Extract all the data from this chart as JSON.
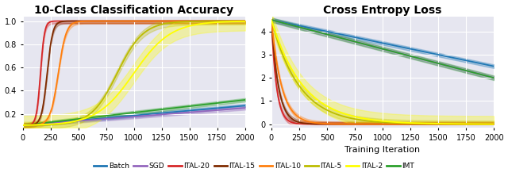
{
  "title_left": "10-Class Classification Accuracy",
  "title_right": "Cross Entropy Loss",
  "xlabel_right": "Training Iteration",
  "xlim": [
    0,
    2000
  ],
  "acc_ylim": [
    0.08,
    1.04
  ],
  "loss_ylim": [
    -0.15,
    4.65
  ],
  "xticks": [
    0,
    250,
    500,
    750,
    1000,
    1250,
    1500,
    1750,
    2000
  ],
  "acc_yticks": [
    0.2,
    0.4,
    0.6,
    0.8,
    1.0
  ],
  "loss_yticks": [
    0,
    1,
    2,
    3,
    4
  ],
  "series": [
    {
      "label": "Batch",
      "color": "#1f77b4"
    },
    {
      "label": "SGD",
      "color": "#9467bd"
    },
    {
      "label": "ITAL-20",
      "color": "#d62728"
    },
    {
      "label": "ITAL-15",
      "color": "#7f2b00"
    },
    {
      "label": "ITAL-10",
      "color": "#ff7f0e"
    },
    {
      "label": "ITAL-5",
      "color": "#bcbc00"
    },
    {
      "label": "ITAL-2",
      "color": "#ffff00"
    },
    {
      "label": "IMT",
      "color": "#2ca02c"
    }
  ],
  "legend_order": [
    "Batch",
    "SGD",
    "ITAL-20",
    "ITAL-15",
    "ITAL-10",
    "ITAL-5",
    "ITAL-2",
    "IMT"
  ],
  "bg_color": "#e6e6f0",
  "title_fontsize": 10,
  "tick_fontsize": 7,
  "label_fontsize": 8
}
